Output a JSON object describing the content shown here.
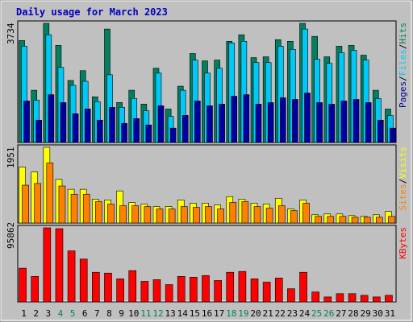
{
  "chart_data": [
    {
      "type": "bar",
      "title": "Daily usage for March 2023",
      "ylim": [
        0,
        3734
      ],
      "yticks": [
        3734
      ],
      "legend_separator": "/",
      "series": [
        {
          "name": "Hits",
          "color": "#008060",
          "values": [
            3197,
            1637,
            3734,
            3043,
            1944,
            2251,
            1432,
            3555,
            1253,
            1637,
            1202,
            2327,
            1049,
            1765,
            2788,
            2558,
            2583,
            3171,
            3376,
            2660,
            2685,
            3222,
            3171,
            3734,
            3325,
            2685,
            3018,
            3043,
            2737,
            1637,
            1049
          ]
        },
        {
          "name": "Files",
          "color": "#00c8f8",
          "values": [
            3018,
            1330,
            3376,
            2353,
            1790,
            1918,
            1279,
            2123,
            1100,
            1381,
            997,
            2174,
            818,
            1637,
            2583,
            2174,
            2327,
            3120,
            3171,
            2506,
            2506,
            3018,
            2916,
            3555,
            2609,
            2481,
            2813,
            2890,
            2583,
            1381,
            844
          ]
        },
        {
          "name": "Pages",
          "color": "#0000a0",
          "values": [
            1300,
            700,
            1500,
            1250,
            900,
            1050,
            700,
            1100,
            600,
            750,
            550,
            1150,
            450,
            850,
            1300,
            1150,
            1200,
            1450,
            1500,
            1200,
            1250,
            1400,
            1350,
            1550,
            1250,
            1200,
            1300,
            1350,
            1250,
            700,
            450
          ]
        }
      ]
    },
    {
      "type": "bar",
      "ylim": [
        0,
        1951
      ],
      "yticks": [
        1951
      ],
      "legend_separator": "/",
      "series": [
        {
          "name": "Visits",
          "color": "#ffff00",
          "values": [
            1442,
            1315,
            1951,
            1124,
            869,
            869,
            615,
            594,
            827,
            530,
            488,
            424,
            424,
            594,
            509,
            509,
            467,
            679,
            615,
            509,
            488,
            636,
            361,
            594,
            212,
            233,
            233,
            191,
            170,
            212,
            297
          ]
        },
        {
          "name": "Sites",
          "color": "#ff8000",
          "values": [
            975,
            1018,
            1548,
            954,
            742,
            742,
            551,
            488,
            445,
            445,
            424,
            361,
            361,
            424,
            403,
            424,
            361,
            530,
            551,
            424,
            382,
            445,
            318,
            509,
            170,
            170,
            170,
            148,
            148,
            148,
            170
          ]
        }
      ]
    },
    {
      "type": "bar",
      "ylim": [
        0,
        95862
      ],
      "yticks": [
        95862
      ],
      "categories": [
        "1",
        "2",
        "3",
        "4",
        "5",
        "6",
        "7",
        "8",
        "9",
        "10",
        "11",
        "12",
        "13",
        "14",
        "15",
        "16",
        "17",
        "18",
        "19",
        "20",
        "21",
        "22",
        "23",
        "24",
        "25",
        "26",
        "27",
        "28",
        "29",
        "30",
        "31"
      ],
      "category_colors": [
        "#000000",
        "#000000",
        "#000000",
        "#008060",
        "#008060",
        "#000000",
        "#000000",
        "#000000",
        "#000000",
        "#000000",
        "#008060",
        "#008060",
        "#000000",
        "#000000",
        "#000000",
        "#000000",
        "#000000",
        "#008060",
        "#008060",
        "#000000",
        "#000000",
        "#000000",
        "#000000",
        "#000000",
        "#008060",
        "#008060",
        "#000000",
        "#000000",
        "#000000",
        "#000000",
        "#000000"
      ],
      "series": [
        {
          "name": "KBytes",
          "color": "#ff0000",
          "values": [
            43670,
            33020,
            95862,
            94797,
            66039,
            55387,
            38345,
            37280,
            29824,
            40475,
            26628,
            28759,
            22368,
            33020,
            31954,
            34084,
            27694,
            38345,
            39410,
            29824,
            25563,
            30889,
            17042,
            38345,
            12782,
            6391,
            10651,
            10651,
            8521,
            6391,
            8521
          ]
        }
      ]
    }
  ]
}
